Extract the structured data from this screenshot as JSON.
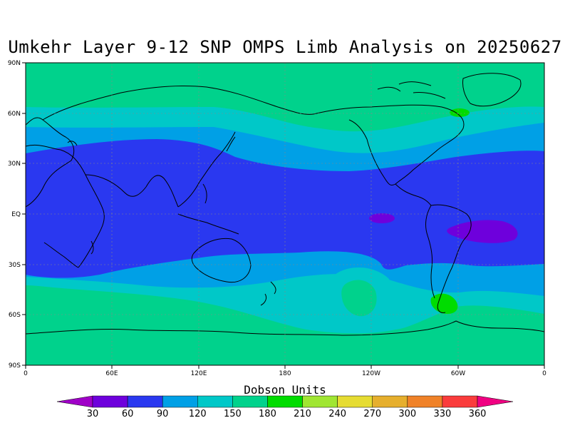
{
  "title": "Umkehr Layer 9-12 SNP OMPS Limb Analysis on 20250627",
  "map": {
    "lat_ticks": [
      "90N",
      "60N",
      "30N",
      "EQ",
      "30S",
      "60S",
      "90S"
    ],
    "lon_ticks": [
      "0",
      "60E",
      "120E",
      "180",
      "120W",
      "60W",
      "0"
    ],
    "colors": {
      "c30": "#a000c8",
      "c60": "#6e00dc",
      "c90": "#2a38f0",
      "c120": "#00a0e6",
      "c150": "#00c8c8",
      "c180": "#00d28c",
      "c210": "#00dc00",
      "c240": "#a0e632",
      "c270": "#e6dc32",
      "c300": "#e6af2d",
      "c330": "#f08228",
      "c360": "#fa3c3c",
      "over": "#f00082"
    }
  },
  "colorbar": {
    "title": "Dobson Units",
    "labels": [
      "30",
      "60",
      "90",
      "120",
      "150",
      "180",
      "210",
      "240",
      "270",
      "300",
      "330",
      "360"
    ],
    "colors": [
      "#6e00dc",
      "#2a38f0",
      "#00a0e6",
      "#00c8c8",
      "#00d28c",
      "#00dc00",
      "#a0e632",
      "#e6dc32",
      "#e6af2d",
      "#f08228",
      "#fa3c3c"
    ],
    "under_color": "#a000c8",
    "over_color": "#f00082"
  }
}
